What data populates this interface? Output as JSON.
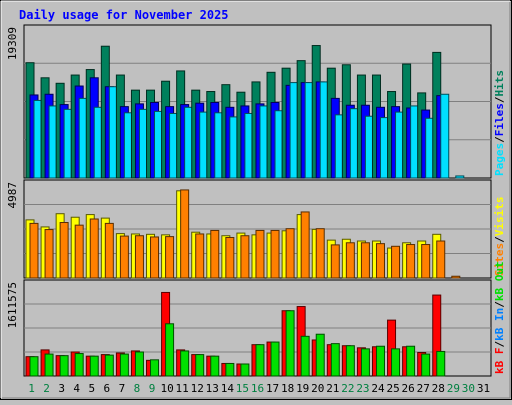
{
  "chart_data": [
    {
      "type": "bar",
      "title": "Daily usage for November 2025",
      "categories": [
        "1",
        "2",
        "3",
        "4",
        "5",
        "6",
        "7",
        "8",
        "9",
        "10",
        "11",
        "12",
        "13",
        "14",
        "15",
        "16",
        "17",
        "18",
        "19",
        "20",
        "21",
        "22",
        "23",
        "24",
        "25",
        "26",
        "27",
        "28",
        "29",
        "30",
        "31"
      ],
      "weekend_days": [
        "1",
        "2",
        "8",
        "9",
        "15",
        "16",
        "22",
        "23",
        "29",
        "30"
      ],
      "ylim": [
        0,
        22000
      ],
      "max_label": "19309",
      "axis_label_parts": [
        "Pages",
        "Files",
        "Hits"
      ],
      "series": [
        {
          "name": "Hits",
          "color": "#00805c",
          "values": [
            16800,
            14600,
            13800,
            15000,
            15800,
            19200,
            15000,
            12800,
            12800,
            14100,
            15600,
            12800,
            12600,
            13600,
            12500,
            14000,
            15400,
            16000,
            17100,
            19300,
            16000,
            16500,
            15000,
            15000,
            12600,
            16600,
            12400,
            18300,
            0,
            0,
            0
          ]
        },
        {
          "name": "Files",
          "color": "#0000ff",
          "values": [
            12100,
            12200,
            10700,
            13400,
            14600,
            13300,
            10400,
            10800,
            11000,
            10400,
            10700,
            10900,
            11000,
            10300,
            10500,
            10800,
            11000,
            13500,
            13900,
            14000,
            11600,
            10600,
            10600,
            10300,
            10400,
            10200,
            9900,
            12000,
            0,
            0,
            0
          ]
        },
        {
          "name": "Pages",
          "color": "#00e0ff",
          "values": [
            11300,
            10500,
            10000,
            11600,
            10300,
            13300,
            9500,
            10000,
            9700,
            9400,
            10300,
            9600,
            9500,
            8900,
            9400,
            10500,
            9800,
            13900,
            13900,
            14000,
            9200,
            10100,
            9000,
            8800,
            9600,
            10500,
            8700,
            12200,
            300,
            0,
            0
          ]
        }
      ]
    },
    {
      "type": "bar",
      "ylim": [
        0,
        5450
      ],
      "max_label": "4987",
      "axis_label_parts": [
        "Sites",
        "Visits"
      ],
      "series": [
        {
          "name": "Visits",
          "color": "#ffff00",
          "values": [
            3300,
            2900,
            3650,
            3450,
            3600,
            3400,
            2520,
            2500,
            2480,
            2450,
            4950,
            2600,
            2500,
            2400,
            2550,
            2450,
            2550,
            2680,
            3600,
            2760,
            2150,
            2200,
            2100,
            2100,
            1700,
            2000,
            2100,
            2480,
            0,
            0,
            0
          ]
        },
        {
          "name": "Sites",
          "color": "#ff8000",
          "values": [
            3100,
            2750,
            3150,
            3000,
            3350,
            3100,
            2380,
            2400,
            2330,
            2350,
            5000,
            2500,
            2700,
            2300,
            2400,
            2700,
            2700,
            2800,
            3750,
            2800,
            1880,
            2000,
            2000,
            1950,
            1800,
            1900,
            1900,
            2100,
            100,
            0,
            0
          ]
        }
      ]
    },
    {
      "type": "bar",
      "ylim": [
        0,
        1800000
      ],
      "max_label": "1611575",
      "axis_label_parts": [
        "kB F",
        "kB In",
        "kB Out"
      ],
      "series": [
        {
          "name": "kB F",
          "color": "#ff0000",
          "values": [
            370000,
            500000,
            390000,
            460000,
            380000,
            410000,
            440000,
            480000,
            300000,
            1600000,
            500000,
            410000,
            380000,
            240000,
            230000,
            600000,
            650000,
            1250000,
            1330000,
            690000,
            600000,
            580000,
            540000,
            560000,
            1070000,
            560000,
            450000,
            1550000,
            0,
            0,
            0
          ]
        },
        {
          "name": "kB In",
          "color": "#0080ff",
          "values": [
            0,
            0,
            0,
            0,
            0,
            0,
            0,
            0,
            0,
            0,
            0,
            0,
            0,
            0,
            0,
            0,
            0,
            0,
            0,
            0,
            0,
            0,
            0,
            0,
            0,
            0,
            0,
            0,
            0,
            0,
            0
          ]
        },
        {
          "name": "kB Out",
          "color": "#00e000",
          "values": [
            370000,
            420000,
            390000,
            430000,
            380000,
            400000,
            420000,
            460000,
            310000,
            1000000,
            480000,
            410000,
            380000,
            240000,
            230000,
            600000,
            650000,
            1250000,
            760000,
            800000,
            620000,
            580000,
            520000,
            570000,
            520000,
            570000,
            420000,
            470000,
            0,
            0,
            0
          ]
        }
      ]
    }
  ]
}
